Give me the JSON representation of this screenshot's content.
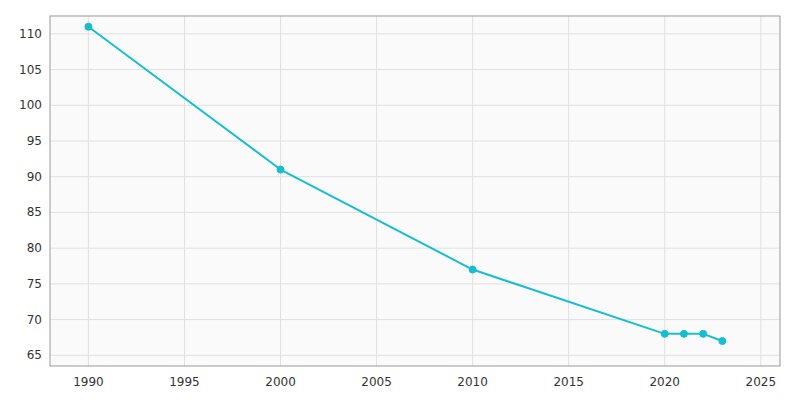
{
  "chart_data": {
    "type": "line",
    "x": [
      1990,
      2000,
      2010,
      2020,
      2021,
      2022,
      2023
    ],
    "values": [
      111,
      91,
      77,
      68,
      68,
      68,
      67
    ],
    "color": "#17becf",
    "marker": "circle",
    "xlim": [
      1988,
      2026
    ],
    "ylim": [
      63.5,
      112.5
    ],
    "xticks": [
      1990,
      1995,
      2000,
      2005,
      2010,
      2015,
      2020,
      2025
    ],
    "yticks": [
      65,
      70,
      75,
      80,
      85,
      90,
      95,
      100,
      105,
      110
    ],
    "grid": true
  }
}
